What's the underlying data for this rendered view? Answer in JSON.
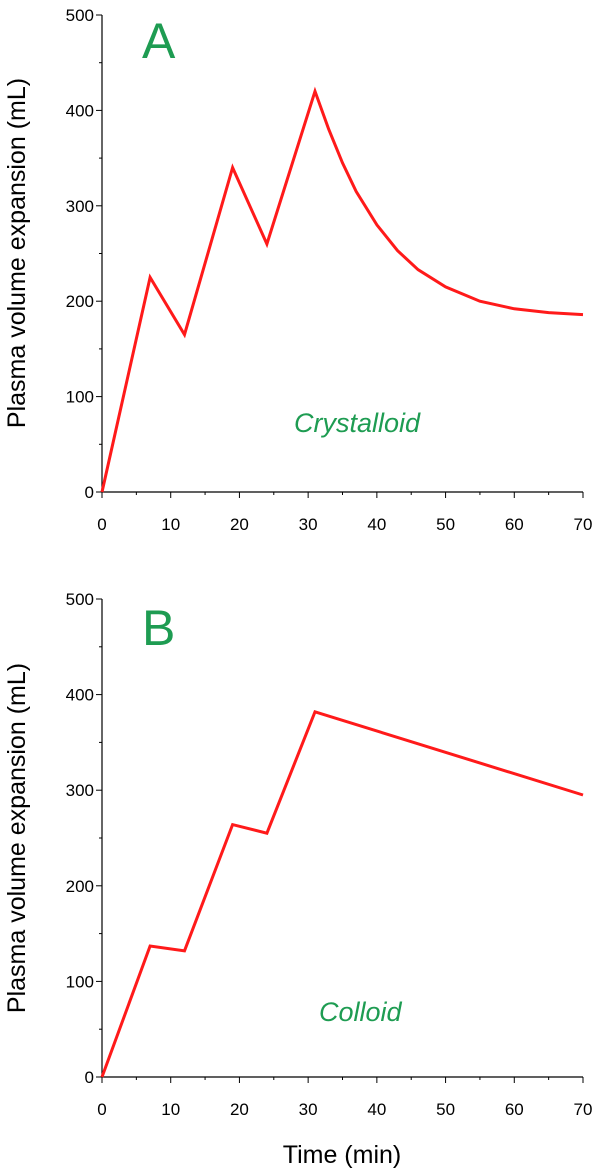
{
  "colors": {
    "line": "#ff1a1a",
    "panel_text": "#1e9c52",
    "axis": "#000000"
  },
  "x_axis_label": "Time (min)",
  "chart_data": [
    {
      "type": "line",
      "panel_label": "A",
      "annotation": "Crystalloid",
      "ylabel": "Plasma volume expansion (mL)",
      "xlabel": "",
      "xlim": [
        0,
        70
      ],
      "ylim": [
        0,
        500
      ],
      "x_ticks": [
        0,
        10,
        20,
        30,
        40,
        50,
        60,
        70
      ],
      "y_ticks": [
        0,
        100,
        200,
        300,
        400,
        500
      ],
      "grid": false,
      "series": [
        {
          "x": [
            0,
            7,
            12,
            19,
            24,
            31,
            33,
            35,
            37,
            40,
            43,
            46,
            50,
            55,
            60,
            65,
            70
          ],
          "y": [
            0,
            225,
            165,
            340,
            260,
            420,
            380,
            345,
            315,
            280,
            253,
            233,
            215,
            200,
            192,
            188,
            186
          ]
        }
      ]
    },
    {
      "type": "line",
      "panel_label": "B",
      "annotation": "Colloid",
      "ylabel": "Plasma volume expansion (mL)",
      "xlabel": "Time (min)",
      "xlim": [
        0,
        70
      ],
      "ylim": [
        0,
        500
      ],
      "x_ticks": [
        0,
        10,
        20,
        30,
        40,
        50,
        60,
        70
      ],
      "y_ticks": [
        0,
        100,
        200,
        300,
        400,
        500
      ],
      "grid": false,
      "series": [
        {
          "x": [
            0,
            7,
            12,
            19,
            24,
            31,
            70
          ],
          "y": [
            0,
            137,
            132,
            264,
            255,
            382,
            295
          ]
        }
      ]
    }
  ]
}
